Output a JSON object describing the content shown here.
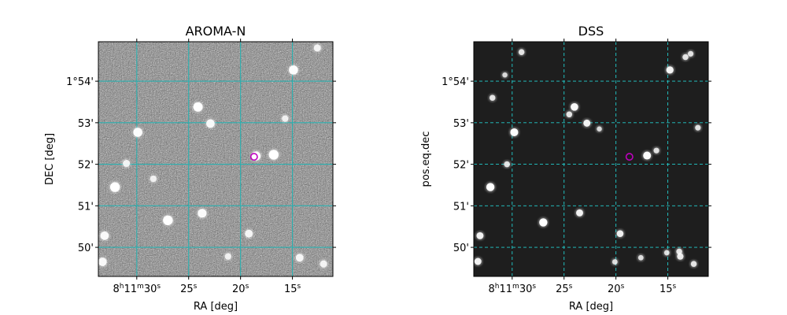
{
  "chart_data": [
    {
      "type": "image",
      "title": "AROMA-N",
      "xlabel": "RA [deg]",
      "ylabel": "DEC [deg]",
      "background": "noise-gray",
      "ra_ticks": [
        {
          "sec": 30,
          "label_h": "8",
          "label_m": "11",
          "label_s": "30",
          "full": true
        },
        {
          "sec": 25,
          "label_s": "25",
          "full": false
        },
        {
          "sec": 20,
          "label_s": "20",
          "full": false
        },
        {
          "sec": 15,
          "label_s": "15",
          "full": false
        }
      ],
      "ra_range_sec": [
        33.7,
        11.1
      ],
      "dec_ticks": [
        {
          "arcmin": 54,
          "label": "1°54'"
        },
        {
          "arcmin": 53,
          "label": "53'"
        },
        {
          "arcmin": 52,
          "label": "52'"
        },
        {
          "arcmin": 51,
          "label": "51'"
        },
        {
          "arcmin": 50,
          "label": "50'"
        }
      ],
      "dec_range_arcmin": [
        49.3,
        54.95
      ],
      "grid_color": "#2ab0b0",
      "grid_style": "solid",
      "marker": {
        "ra_sec": 18.7,
        "dec_arcmin": 52.18,
        "color": "#c000c0"
      },
      "sources": [
        {
          "ra_sec": 32.1,
          "dec_arcmin": 51.45,
          "b": 1.0
        },
        {
          "ra_sec": 29.9,
          "dec_arcmin": 52.77,
          "b": 0.9
        },
        {
          "ra_sec": 27.0,
          "dec_arcmin": 50.65,
          "b": 1.0
        },
        {
          "ra_sec": 24.1,
          "dec_arcmin": 53.38,
          "b": 0.95
        },
        {
          "ra_sec": 22.9,
          "dec_arcmin": 52.98,
          "b": 0.8
        },
        {
          "ra_sec": 18.5,
          "dec_arcmin": 52.2,
          "b": 0.9
        },
        {
          "ra_sec": 16.8,
          "dec_arcmin": 52.23,
          "b": 1.0
        },
        {
          "ra_sec": 23.7,
          "dec_arcmin": 50.82,
          "b": 0.85
        },
        {
          "ra_sec": 14.9,
          "dec_arcmin": 54.27,
          "b": 0.9
        },
        {
          "ra_sec": 33.1,
          "dec_arcmin": 50.28,
          "b": 0.8
        },
        {
          "ra_sec": 33.3,
          "dec_arcmin": 49.65,
          "b": 0.8
        },
        {
          "ra_sec": 31.0,
          "dec_arcmin": 52.02,
          "b": 0.6
        },
        {
          "ra_sec": 19.2,
          "dec_arcmin": 50.33,
          "b": 0.7
        },
        {
          "ra_sec": 12.0,
          "dec_arcmin": 49.6,
          "b": 0.6
        },
        {
          "ra_sec": 14.3,
          "dec_arcmin": 49.75,
          "b": 0.7
        },
        {
          "ra_sec": 21.2,
          "dec_arcmin": 49.78,
          "b": 0.5
        },
        {
          "ra_sec": 28.4,
          "dec_arcmin": 51.65,
          "b": 0.5
        },
        {
          "ra_sec": 15.7,
          "dec_arcmin": 53.1,
          "b": 0.5
        },
        {
          "ra_sec": 12.6,
          "dec_arcmin": 54.8,
          "b": 0.6
        }
      ]
    },
    {
      "type": "image",
      "title": "DSS",
      "xlabel": "RA [deg]",
      "ylabel": "pos.eq.dec",
      "background": "dark",
      "ra_ticks": [
        {
          "sec": 30,
          "label_h": "8",
          "label_m": "11",
          "label_s": "30",
          "full": true
        },
        {
          "sec": 25,
          "label_s": "25",
          "full": false
        },
        {
          "sec": 20,
          "label_s": "20",
          "full": false
        },
        {
          "sec": 15,
          "label_s": "15",
          "full": false
        }
      ],
      "ra_range_sec": [
        33.7,
        11.1
      ],
      "dec_ticks": [
        {
          "arcmin": 54,
          "label": "1°54'"
        },
        {
          "arcmin": 53,
          "label": "53'"
        },
        {
          "arcmin": 52,
          "label": "52'"
        },
        {
          "arcmin": 51,
          "label": "51'"
        },
        {
          "arcmin": 50,
          "label": "50'"
        }
      ],
      "dec_range_arcmin": [
        49.3,
        54.95
      ],
      "grid_color": "#22cccc",
      "grid_style": "dashed",
      "marker": {
        "ra_sec": 18.7,
        "dec_arcmin": 52.18,
        "color": "#c000c0"
      },
      "sources": [
        {
          "ra_sec": 32.1,
          "dec_arcmin": 51.45,
          "b": 1.0
        },
        {
          "ra_sec": 29.8,
          "dec_arcmin": 52.77,
          "b": 0.95
        },
        {
          "ra_sec": 27.0,
          "dec_arcmin": 50.6,
          "b": 1.0
        },
        {
          "ra_sec": 24.0,
          "dec_arcmin": 53.38,
          "b": 0.9
        },
        {
          "ra_sec": 22.8,
          "dec_arcmin": 52.99,
          "b": 0.8
        },
        {
          "ra_sec": 24.5,
          "dec_arcmin": 53.2,
          "b": 0.6
        },
        {
          "ra_sec": 17.0,
          "dec_arcmin": 52.21,
          "b": 0.95
        },
        {
          "ra_sec": 23.5,
          "dec_arcmin": 50.83,
          "b": 0.8
        },
        {
          "ra_sec": 14.8,
          "dec_arcmin": 54.27,
          "b": 0.85
        },
        {
          "ra_sec": 33.1,
          "dec_arcmin": 50.28,
          "b": 0.8
        },
        {
          "ra_sec": 33.3,
          "dec_arcmin": 49.66,
          "b": 0.8
        },
        {
          "ra_sec": 30.5,
          "dec_arcmin": 52.0,
          "b": 0.6
        },
        {
          "ra_sec": 19.6,
          "dec_arcmin": 50.33,
          "b": 0.75
        },
        {
          "ra_sec": 12.5,
          "dec_arcmin": 49.6,
          "b": 0.6
        },
        {
          "ra_sec": 13.8,
          "dec_arcmin": 49.78,
          "b": 0.7
        },
        {
          "ra_sec": 13.9,
          "dec_arcmin": 49.9,
          "b": 0.6
        },
        {
          "ra_sec": 31.9,
          "dec_arcmin": 53.6,
          "b": 0.6
        },
        {
          "ra_sec": 29.1,
          "dec_arcmin": 54.7,
          "b": 0.6
        },
        {
          "ra_sec": 16.1,
          "dec_arcmin": 52.33,
          "b": 0.55
        },
        {
          "ra_sec": 13.3,
          "dec_arcmin": 54.58,
          "b": 0.6
        },
        {
          "ra_sec": 12.8,
          "dec_arcmin": 54.66,
          "b": 0.55
        },
        {
          "ra_sec": 20.1,
          "dec_arcmin": 49.65,
          "b": 0.5
        },
        {
          "ra_sec": 17.6,
          "dec_arcmin": 49.75,
          "b": 0.5
        },
        {
          "ra_sec": 12.1,
          "dec_arcmin": 52.88,
          "b": 0.55
        },
        {
          "ra_sec": 15.1,
          "dec_arcmin": 49.87,
          "b": 0.5
        },
        {
          "ra_sec": 30.7,
          "dec_arcmin": 54.15,
          "b": 0.45
        },
        {
          "ra_sec": 21.6,
          "dec_arcmin": 52.85,
          "b": 0.45
        }
      ]
    }
  ]
}
